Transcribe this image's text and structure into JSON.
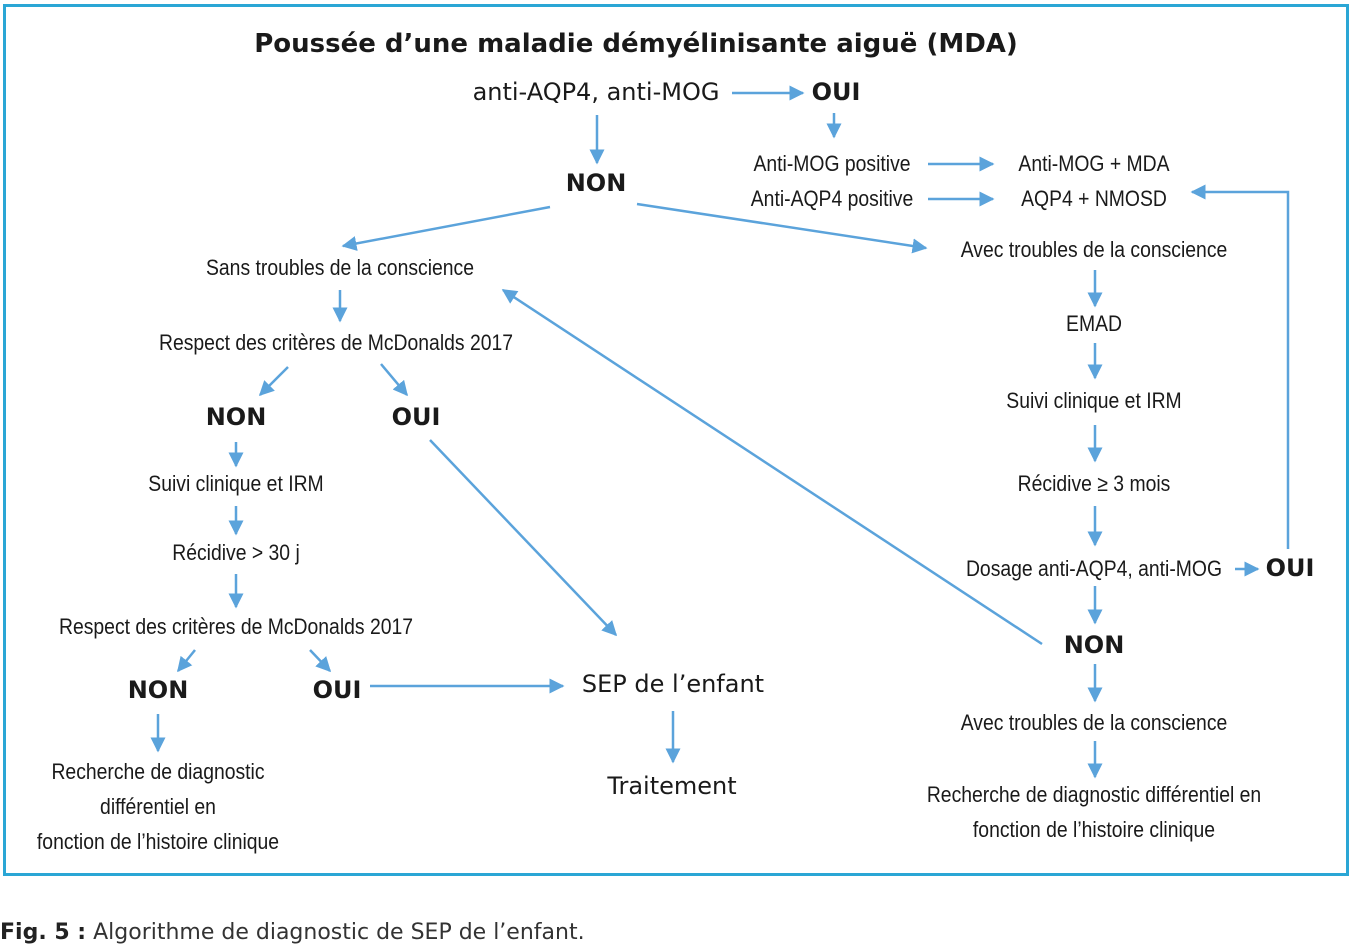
{
  "title": "Poussée d’une maladie démyélinisante aiguë (MDA)",
  "root": {
    "test": "anti-AQP4, anti-MOG",
    "oui": "OUI",
    "non": "NON"
  },
  "positive_branch": {
    "mog_positive": "Anti-MOG positive",
    "aqp4_positive": "Anti-AQP4 positive",
    "mog_result": "Anti-MOG + MDA",
    "aqp4_result": "AQP4 + NMOSD"
  },
  "left_branch": {
    "start": "Sans troubles de la conscience",
    "criteria1": "Respect des critères de McDonalds 2017",
    "non1": "NON",
    "oui1": "OUI",
    "suivi": "Suivi clinique et IRM",
    "recidive": "Récidive > 30 j",
    "criteria2": "Respect des critères de McDonalds 2017",
    "non2": "NON",
    "oui2": "OUI",
    "recherche": [
      "Recherche de diagnostic",
      "différentiel en",
      "fonction de l’histoire clinique"
    ]
  },
  "center": {
    "sep": "SEP de l’enfant",
    "traitement": "Traitement"
  },
  "right_branch": {
    "start": "Avec troubles de la conscience",
    "emad": "EMAD",
    "suivi": "Suivi clinique et IRM",
    "recidive": "Récidive ≥ 3 mois",
    "dosage": "Dosage anti-AQP4, anti-MOG",
    "oui": "OUI",
    "non": "NON",
    "troubles2": "Avec troubles de la conscience",
    "recherche": [
      "Recherche de diagnostic différentiel en",
      "fonction de l’histoire clinique"
    ]
  },
  "caption": {
    "label": "Fig. 5 :",
    "text": " Algorithme de diagnostic de SEP de l’enfant."
  },
  "colors": {
    "arrow": "#5ba3db",
    "border": "#2aa6d5"
  }
}
